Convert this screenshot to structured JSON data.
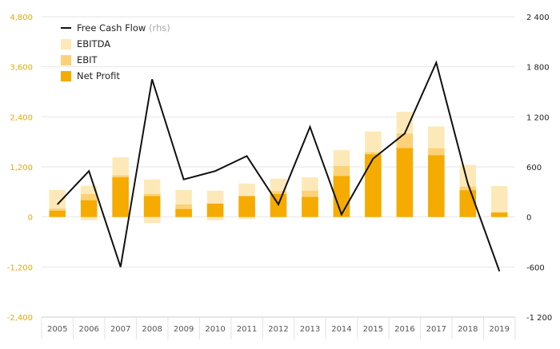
{
  "chart_data": {
    "type": "bar",
    "categories": [
      "2005",
      "2006",
      "2007",
      "2008",
      "2009",
      "2010",
      "2011",
      "2012",
      "2013",
      "2014",
      "2015",
      "2016",
      "2017",
      "2018",
      "2019"
    ],
    "series": [
      {
        "name": "EBITDA",
        "axis": "left",
        "color": "#fde9b8",
        "values": [
          650,
          750,
          1430,
          900,
          650,
          630,
          800,
          920,
          950,
          1600,
          2050,
          2520,
          2170,
          1250,
          740
        ]
      },
      {
        "name": "EBIT",
        "axis": "left",
        "color": "#fcd278",
        "values": [
          200,
          550,
          1000,
          550,
          300,
          150,
          350,
          620,
          630,
          1220,
          1550,
          2000,
          1650,
          730,
          120
        ]
      },
      {
        "name": "Net Profit",
        "axis": "left",
        "color": "#f5ab00",
        "values": [
          150,
          400,
          950,
          500,
          190,
          320,
          500,
          550,
          480,
          980,
          1500,
          1650,
          1480,
          640,
          100
        ]
      },
      {
        "name": "Free Cash Flow",
        "axis": "right",
        "color": "#111111",
        "values": [
          150,
          550,
          -600,
          1650,
          450,
          550,
          730,
          150,
          1080,
          30,
          700,
          1000,
          1850,
          400,
          -650
        ]
      }
    ],
    "negative_values": {
      "EBITDA": [
        0,
        -80,
        0,
        -150,
        0,
        -80,
        -50,
        0,
        0,
        0,
        0,
        0,
        0,
        0,
        0
      ]
    },
    "legend": [
      {
        "label": "Free Cash Flow",
        "note": "(rhs)",
        "symbol": "line",
        "color": "#111111"
      },
      {
        "label": "EBITDA",
        "note": "",
        "symbol": "box",
        "color": "#fde9b8"
      },
      {
        "label": "EBIT",
        "note": "",
        "symbol": "box",
        "color": "#fcd278"
      },
      {
        "label": "Net Profit",
        "note": "",
        "symbol": "box",
        "color": "#f5ab00"
      }
    ],
    "y_left": {
      "min": -2400,
      "max": 4800,
      "ticks": [
        -2400,
        -1200,
        0,
        1200,
        2400,
        3600,
        4800
      ],
      "tick_labels": [
        "-2,400",
        "-1,200",
        "0",
        "1,200",
        "2,400",
        "3,600",
        "4,800"
      ],
      "color": "#e8a800"
    },
    "y_right": {
      "min": -1200,
      "max": 2400,
      "ticks": [
        -1200,
        -600,
        0,
        600,
        1200,
        1800,
        2400
      ],
      "tick_labels": [
        "-1 200",
        "-600",
        "0",
        "600",
        "1 200",
        "1 800",
        "2 400"
      ],
      "color": "#222222"
    },
    "legend_position": "top-left",
    "grid": true
  }
}
